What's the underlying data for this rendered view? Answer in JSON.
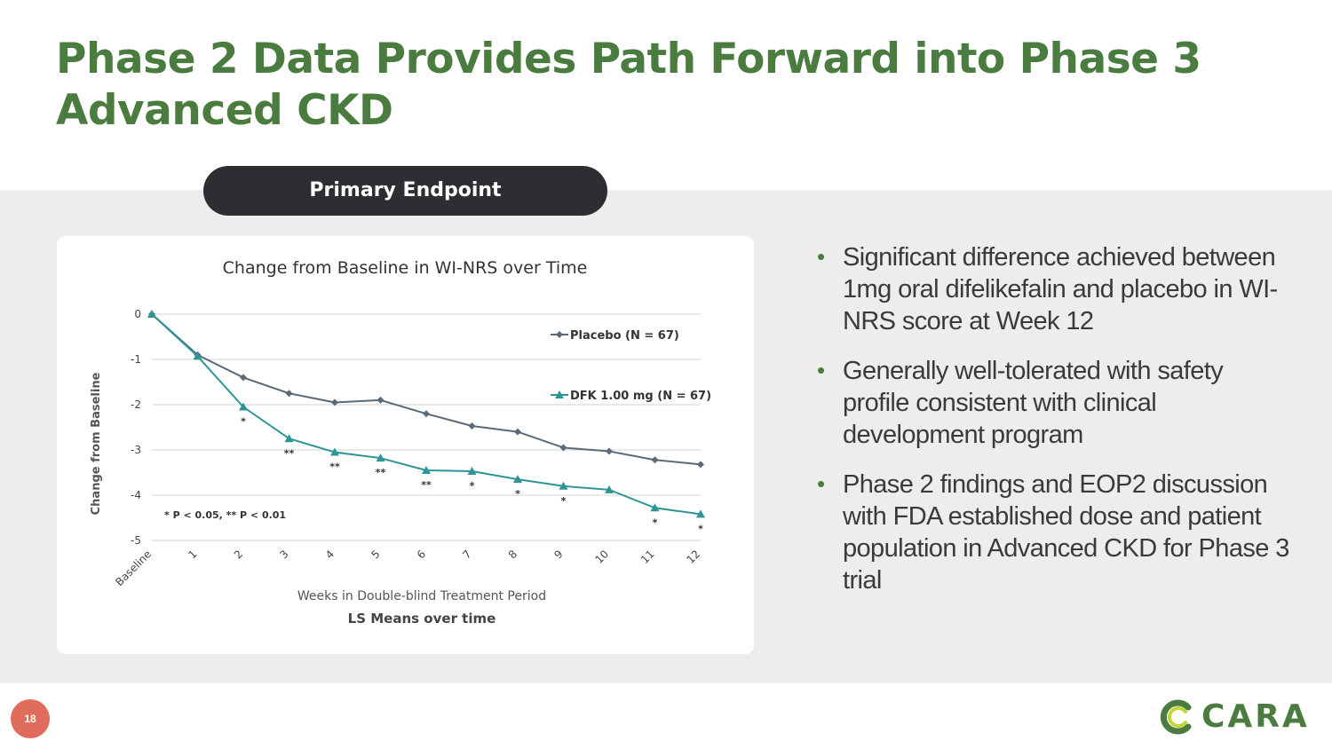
{
  "slide": {
    "title": "Phase 2 Data Provides Path Forward into Phase 3 Advanced CKD",
    "page_number": "18"
  },
  "pill": {
    "label": "Primary Endpoint"
  },
  "bullets": [
    "Significant difference achieved between 1mg oral difelikefalin and placebo in WI-NRS score at Week 12",
    "Generally well-tolerated with safety profile consistent with clinical development program",
    "Phase 2 findings and EOP2 discussion with FDA established dose and patient population in Advanced CKD for Phase 3 trial"
  ],
  "bullet_symbol": "•",
  "logo": {
    "text": "CARA",
    "icon": "cara-swirl-icon"
  },
  "colors": {
    "title": "#4a7c3f",
    "placebo": "#5b6a77",
    "dfk": "#2e9596",
    "page_badge": "#e06c5c"
  },
  "chart_data": {
    "type": "line",
    "title": "Change from Baseline in WI-NRS over Time",
    "xlabel": "Weeks in Double-blind Treatment Period",
    "ylabel": "Change from Baseline",
    "subtitle": "LS Means over time",
    "categories": [
      "Baseline",
      "1",
      "2",
      "3",
      "4",
      "5",
      "6",
      "7",
      "8",
      "9",
      "10",
      "11",
      "12"
    ],
    "ylim": [
      -5,
      0
    ],
    "yticks": [
      "0",
      "-1",
      "-2",
      "-3",
      "-4",
      "-5"
    ],
    "grid": true,
    "legend_position": "right",
    "footnote": "* P < 0.05, ** P < 0.01",
    "series": [
      {
        "name": "Placebo (N = 67)",
        "marker": "diamond",
        "values": [
          0,
          -0.9,
          -1.4,
          -1.75,
          -1.95,
          -1.9,
          -2.2,
          -2.47,
          -2.6,
          -2.95,
          -3.03,
          -3.22,
          -3.32
        ]
      },
      {
        "name": "DFK 1.00 mg (N = 67)",
        "marker": "triangle",
        "values": [
          0,
          -0.93,
          -2.05,
          -2.75,
          -3.05,
          -3.18,
          -3.45,
          -3.47,
          -3.65,
          -3.8,
          -3.88,
          -4.28,
          -4.42
        ]
      }
    ],
    "significance": [
      "",
      "",
      "*",
      "**",
      "**",
      "**",
      "**",
      "*",
      "*",
      "*",
      "",
      "*",
      "*"
    ]
  }
}
